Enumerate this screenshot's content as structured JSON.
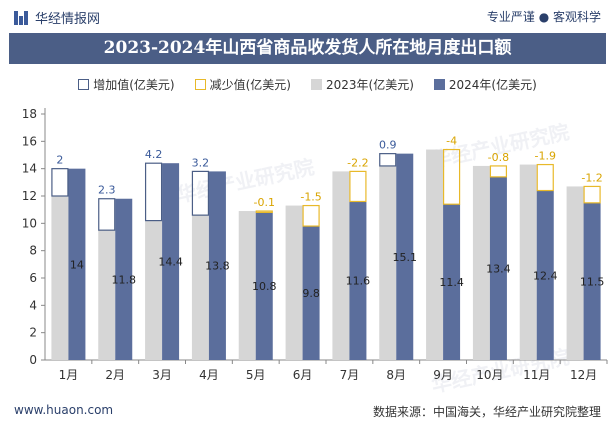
{
  "header": {
    "brand": "华经情报网",
    "tagline": "专业严谨 ● 客观科学",
    "title": "2023-2024年山西省商品收发货人所在地月度出口额"
  },
  "legend": {
    "increase": "增加值(亿美元)",
    "decrease": "减少值(亿美元)",
    "y2023": "2023年(亿美元)",
    "y2024": "2024年(亿美元)"
  },
  "footer": {
    "site": "www.huaon.com",
    "source": "数据来源：中国海关，华经产业研究院整理"
  },
  "watermark": "华经产业研究院",
  "colors": {
    "bar2023": "#d6d6d6",
    "bar2024": "#5b6e9c",
    "increase": "#4b5e86",
    "decrease": "#e8b92a",
    "title_bg": "#4b5e86"
  },
  "chart_data": {
    "type": "bar",
    "categories": [
      "1月",
      "2月",
      "3月",
      "4月",
      "5月",
      "6月",
      "7月",
      "8月",
      "9月",
      "10月",
      "11月",
      "12月"
    ],
    "series": [
      {
        "name": "2023年(亿美元)",
        "values": [
          12.0,
          9.5,
          10.2,
          10.6,
          10.9,
          11.3,
          13.8,
          14.2,
          15.4,
          14.2,
          14.3,
          12.7
        ]
      },
      {
        "name": "2024年(亿美元)",
        "values": [
          14,
          11.8,
          14.4,
          13.8,
          10.8,
          9.8,
          11.6,
          15.1,
          11.4,
          13.4,
          12.4,
          11.5
        ]
      }
    ],
    "change": [
      "2",
      "2.3",
      "4.2",
      "3.2",
      "-0.1",
      "-1.5",
      "-2.2",
      "0.9",
      "-4",
      "-0.8",
      "-1.9",
      "-1.2"
    ],
    "change_values": [
      2,
      2.3,
      4.2,
      3.2,
      -0.1,
      -1.5,
      -2.2,
      0.9,
      -4,
      -0.8,
      -1.9,
      -1.2
    ],
    "ylim": [
      0,
      18
    ],
    "yticks": [
      "0",
      "2",
      "4",
      "6",
      "8",
      "10",
      "12",
      "14",
      "16",
      "18"
    ],
    "grid": false,
    "legend_position": "top"
  }
}
